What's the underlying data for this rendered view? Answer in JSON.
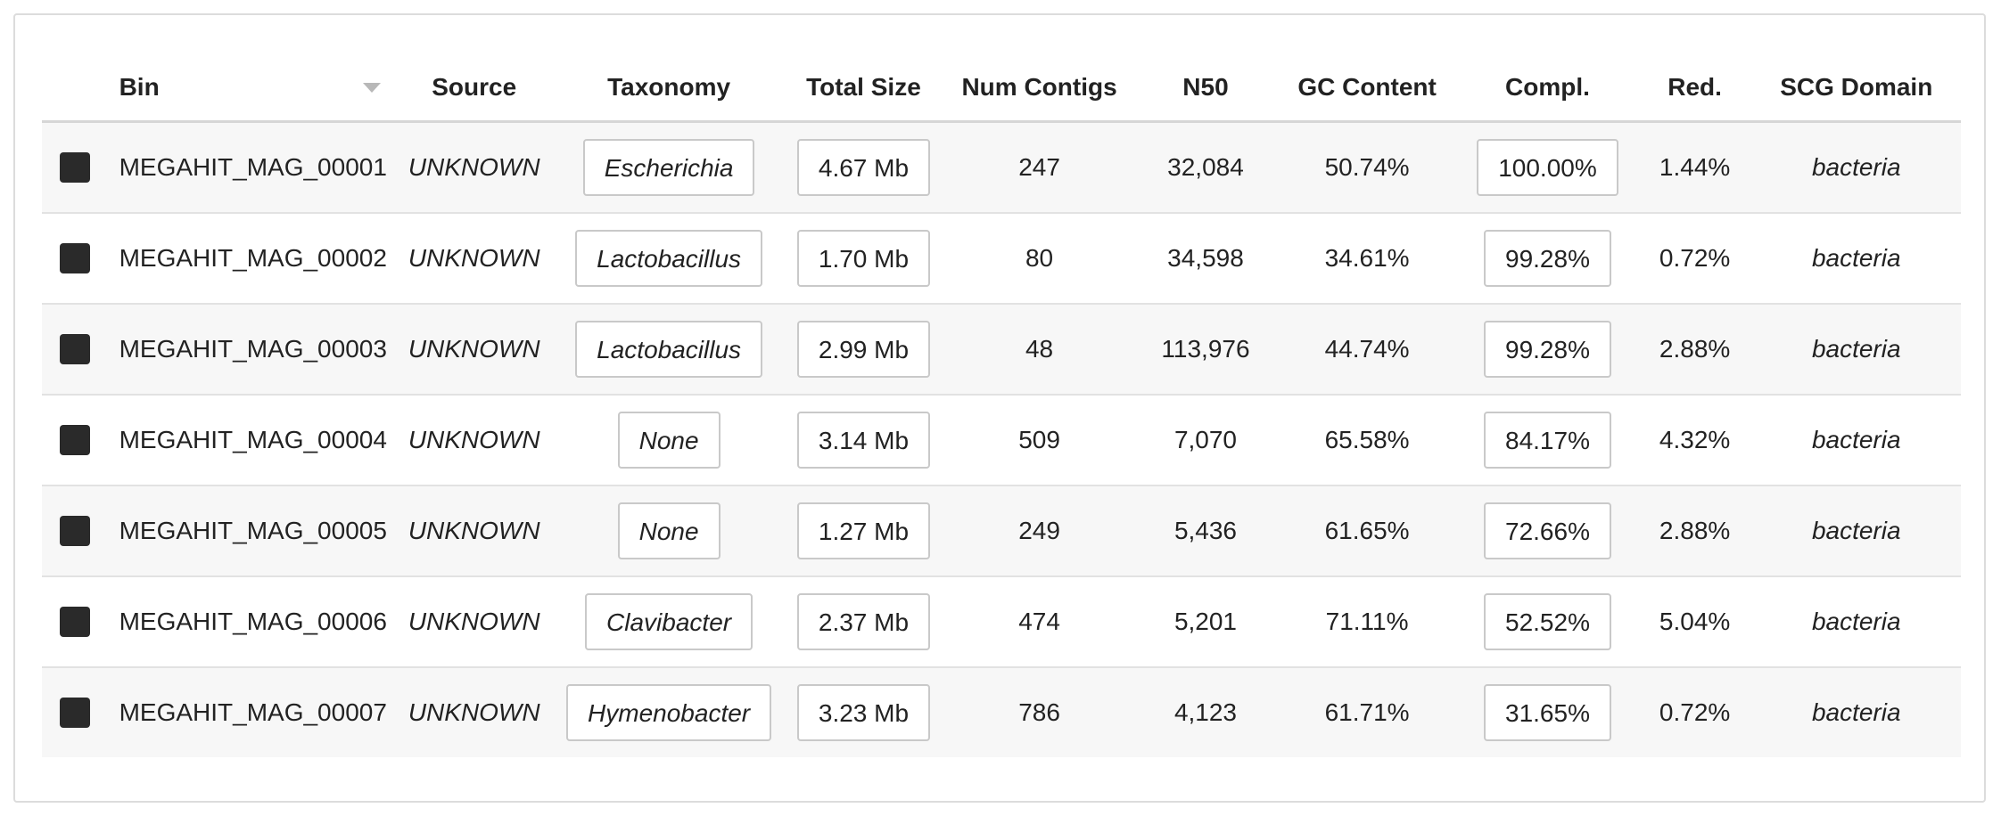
{
  "columns": {
    "color": "",
    "bin": "Bin",
    "source": "Source",
    "taxonomy": "Taxonomy",
    "total_size": "Total Size",
    "num_contigs": "Num Contigs",
    "n50": "N50",
    "gc": "GC Content",
    "compl": "Compl.",
    "red": "Red.",
    "scg": "SCG Domain"
  },
  "sort": {
    "column": "Bin",
    "icon": "sort-caret-icon"
  },
  "rows": [
    {
      "color": "#2a2a2a",
      "bin": "MEGAHIT_MAG_00001",
      "source": "UNKNOWN",
      "taxonomy": "Escherichia",
      "total_size": "4.67 Mb",
      "num_contigs": "247",
      "n50": "32,084",
      "gc": "50.74%",
      "compl": "100.00%",
      "red": "1.44%",
      "scg": "bacteria"
    },
    {
      "color": "#2a2a2a",
      "bin": "MEGAHIT_MAG_00002",
      "source": "UNKNOWN",
      "taxonomy": "Lactobacillus",
      "total_size": "1.70 Mb",
      "num_contigs": "80",
      "n50": "34,598",
      "gc": "34.61%",
      "compl": "99.28%",
      "red": "0.72%",
      "scg": "bacteria"
    },
    {
      "color": "#2a2a2a",
      "bin": "MEGAHIT_MAG_00003",
      "source": "UNKNOWN",
      "taxonomy": "Lactobacillus",
      "total_size": "2.99 Mb",
      "num_contigs": "48",
      "n50": "113,976",
      "gc": "44.74%",
      "compl": "99.28%",
      "red": "2.88%",
      "scg": "bacteria"
    },
    {
      "color": "#2a2a2a",
      "bin": "MEGAHIT_MAG_00004",
      "source": "UNKNOWN",
      "taxonomy": "None",
      "total_size": "3.14 Mb",
      "num_contigs": "509",
      "n50": "7,070",
      "gc": "65.58%",
      "compl": "84.17%",
      "red": "4.32%",
      "scg": "bacteria"
    },
    {
      "color": "#2a2a2a",
      "bin": "MEGAHIT_MAG_00005",
      "source": "UNKNOWN",
      "taxonomy": "None",
      "total_size": "1.27 Mb",
      "num_contigs": "249",
      "n50": "5,436",
      "gc": "61.65%",
      "compl": "72.66%",
      "red": "2.88%",
      "scg": "bacteria"
    },
    {
      "color": "#2a2a2a",
      "bin": "MEGAHIT_MAG_00006",
      "source": "UNKNOWN",
      "taxonomy": "Clavibacter",
      "total_size": "2.37 Mb",
      "num_contigs": "474",
      "n50": "5,201",
      "gc": "71.11%",
      "compl": "52.52%",
      "red": "5.04%",
      "scg": "bacteria"
    },
    {
      "color": "#2a2a2a",
      "bin": "MEGAHIT_MAG_00007",
      "source": "UNKNOWN",
      "taxonomy": "Hymenobacter",
      "total_size": "3.23 Mb",
      "num_contigs": "786",
      "n50": "4,123",
      "gc": "61.71%",
      "compl": "31.65%",
      "red": "0.72%",
      "scg": "bacteria"
    }
  ]
}
